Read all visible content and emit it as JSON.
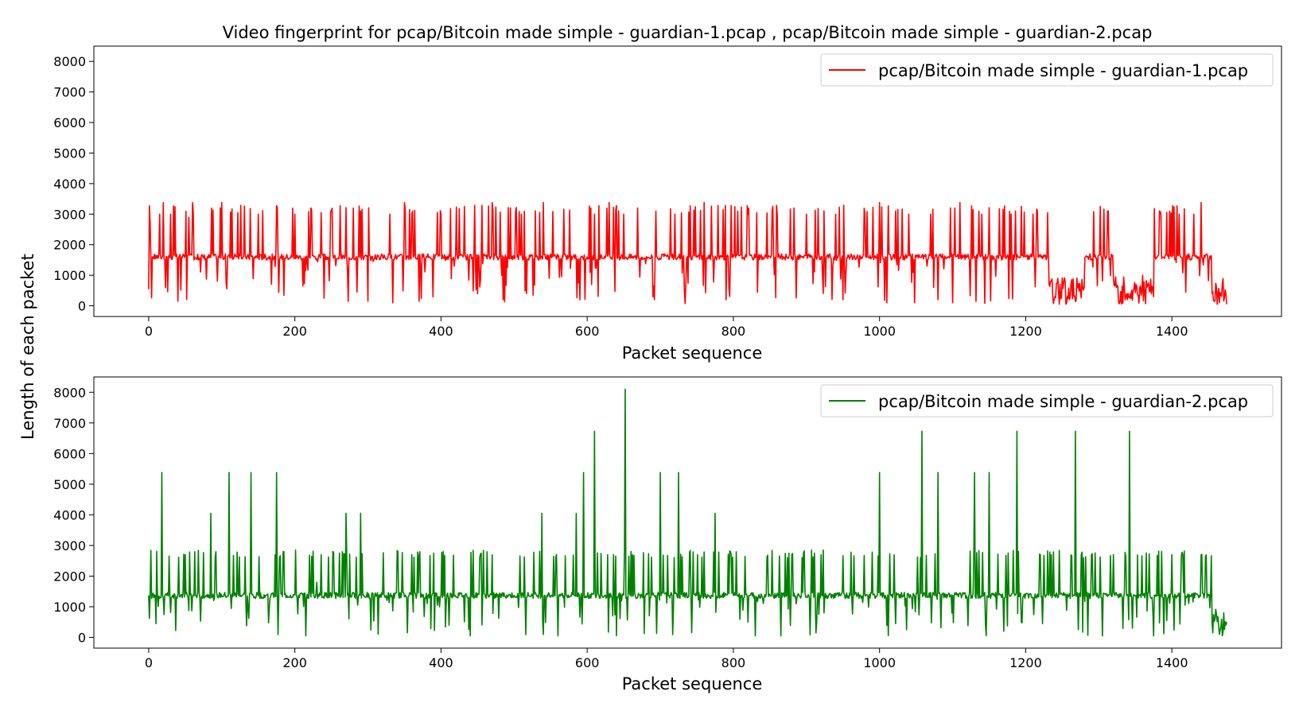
{
  "figure": {
    "title": "Video fingerprint for pcap/Bitcoin made simple - guardian-1.pcap , pcap/Bitcoin made simple - guardian-2.pcap",
    "shared_ylabel": "Length of each packet"
  },
  "chart_data": [
    {
      "type": "line",
      "xlabel": "Packet sequence",
      "ylabel": "Length of each packet",
      "xlim": [
        -75,
        1550
      ],
      "ylim": [
        -350,
        8500
      ],
      "xticks": [
        "0",
        "200",
        "400",
        "600",
        "800",
        "1000",
        "1200",
        "1400"
      ],
      "yticks": [
        "0",
        "1000",
        "2000",
        "3000",
        "4000",
        "5000",
        "6000",
        "7000",
        "8000"
      ],
      "grid": false,
      "legend_position": "top-right",
      "series": [
        {
          "name": "pcap/Bitcoin made simple - guardian-1.pcap",
          "color": "#ff0000",
          "x_count": 1476,
          "baseline": 1600,
          "max": 3380,
          "points": [
            [
              0,
              540
            ],
            [
              2,
              2700
            ],
            [
              5,
              1600
            ],
            [
              10,
              1650
            ],
            [
              15,
              3000
            ],
            [
              20,
              3380
            ],
            [
              25,
              1600
            ],
            [
              30,
              3000
            ],
            [
              35,
              1650
            ],
            [
              40,
              150
            ],
            [
              45,
              1600
            ],
            [
              55,
              2900
            ],
            [
              60,
              3380
            ],
            [
              80,
              1600
            ],
            [
              100,
              3380
            ],
            [
              120,
              1600
            ],
            [
              150,
              3000
            ],
            [
              180,
              1600
            ],
            [
              200,
              3000
            ],
            [
              220,
              1600
            ],
            [
              250,
              3100
            ],
            [
              280,
              3200
            ],
            [
              285,
              450
            ],
            [
              290,
              3100
            ],
            [
              300,
              150
            ],
            [
              305,
              1600
            ],
            [
              330,
              3000
            ],
            [
              350,
              3380
            ],
            [
              360,
              3000
            ],
            [
              370,
              150
            ],
            [
              375,
              1600
            ],
            [
              400,
              3000
            ],
            [
              430,
              1600
            ],
            [
              450,
              400
            ],
            [
              455,
              1600
            ],
            [
              470,
              3380
            ],
            [
              480,
              1600
            ],
            [
              485,
              200
            ],
            [
              490,
              1600
            ],
            [
              510,
              3000
            ],
            [
              540,
              3380
            ],
            [
              560,
              1600
            ],
            [
              580,
              1600
            ],
            [
              590,
              200
            ],
            [
              600,
              1600
            ],
            [
              610,
              3000
            ],
            [
              630,
              3380
            ],
            [
              650,
              3000
            ],
            [
              670,
              1600
            ],
            [
              690,
              300
            ],
            [
              695,
              1600
            ],
            [
              720,
              3000
            ],
            [
              740,
              1600
            ],
            [
              760,
              3380
            ],
            [
              780,
              1600
            ],
            [
              790,
              200
            ],
            [
              800,
              1600
            ],
            [
              820,
              3000
            ],
            [
              840,
              1600
            ],
            [
              860,
              3000
            ],
            [
              880,
              1600
            ],
            [
              900,
              3000
            ],
            [
              920,
              1600
            ],
            [
              940,
              3000
            ],
            [
              950,
              200
            ],
            [
              960,
              1600
            ],
            [
              980,
              3000
            ],
            [
              990,
              1600
            ],
            [
              1000,
              3380
            ],
            [
              1010,
              100
            ],
            [
              1020,
              1600
            ],
            [
              1040,
              3000
            ],
            [
              1048,
              100
            ],
            [
              1055,
              1600
            ],
            [
              1070,
              3000
            ],
            [
              1080,
              200
            ],
            [
              1090,
              1600
            ],
            [
              1100,
              100
            ],
            [
              1110,
              3380
            ],
            [
              1120,
              1600
            ],
            [
              1140,
              3000
            ],
            [
              1160,
              1600
            ],
            [
              1180,
              3000
            ],
            [
              1200,
              1600
            ],
            [
              1210,
              3000
            ],
            [
              1225,
              1600
            ],
            [
              1230,
              3050
            ],
            [
              1232,
              700
            ],
            [
              1240,
              300
            ],
            [
              1260,
              200
            ],
            [
              1280,
              600
            ],
            [
              1300,
              1650
            ],
            [
              1320,
              900
            ],
            [
              1340,
              400
            ],
            [
              1360,
              1000
            ],
            [
              1375,
              300
            ],
            [
              1380,
              1600
            ],
            [
              1385,
              3000
            ],
            [
              1400,
              1600
            ],
            [
              1410,
              3000
            ],
            [
              1420,
              1600
            ],
            [
              1430,
              3000
            ],
            [
              1440,
              3380
            ],
            [
              1448,
              1700
            ],
            [
              1455,
              400
            ],
            [
              1465,
              100
            ],
            [
              1475,
              50
            ]
          ]
        },
        {
          "name": "pcap/Bitcoin made simple - guardian-2.pcap",
          "color": "#008000",
          "x_count": 1476,
          "baseline": 1370,
          "max": 8100,
          "points": [
            [
              0,
              1370
            ],
            [
              5,
              1370
            ],
            [
              10,
              450
            ],
            [
              18,
              5380
            ],
            [
              25,
              1370
            ],
            [
              50,
              2700
            ],
            [
              85,
              4050
            ],
            [
              110,
              5380
            ],
            [
              140,
              5380
            ],
            [
              175,
              5380
            ],
            [
              215,
              50
            ],
            [
              230,
              1800
            ],
            [
              270,
              4050
            ],
            [
              290,
              4050
            ],
            [
              330,
              1370
            ],
            [
              360,
              2700
            ],
            [
              400,
              1370
            ],
            [
              440,
              50
            ],
            [
              470,
              2700
            ],
            [
              500,
              1370
            ],
            [
              538,
              4050
            ],
            [
              560,
              50
            ],
            [
              585,
              4050
            ],
            [
              595,
              5380
            ],
            [
              610,
              6730
            ],
            [
              620,
              1370
            ],
            [
              652,
              8100
            ],
            [
              680,
              1370
            ],
            [
              700,
              5380
            ],
            [
              725,
              5380
            ],
            [
              750,
              1370
            ],
            [
              775,
              4050
            ],
            [
              800,
              1370
            ],
            [
              830,
              50
            ],
            [
              850,
              1370
            ],
            [
              865,
              50
            ],
            [
              880,
              2700
            ],
            [
              920,
              2700
            ],
            [
              960,
              1370
            ],
            [
              1000,
              5380
            ],
            [
              1040,
              1370
            ],
            [
              1058,
              6730
            ],
            [
              1080,
              5380
            ],
            [
              1100,
              1370
            ],
            [
              1130,
              5380
            ],
            [
              1150,
              5380
            ],
            [
              1170,
              200
            ],
            [
              1188,
              6730
            ],
            [
              1220,
              2700
            ],
            [
              1245,
              1370
            ],
            [
              1268,
              6730
            ],
            [
              1290,
              2700
            ],
            [
              1305,
              50
            ],
            [
              1320,
              2700
            ],
            [
              1342,
              6730
            ],
            [
              1375,
              50
            ],
            [
              1400,
              2700
            ],
            [
              1440,
              2700
            ],
            [
              1450,
              1370
            ],
            [
              1455,
              500
            ],
            [
              1465,
              100
            ],
            [
              1475,
              500
            ]
          ]
        }
      ]
    }
  ]
}
